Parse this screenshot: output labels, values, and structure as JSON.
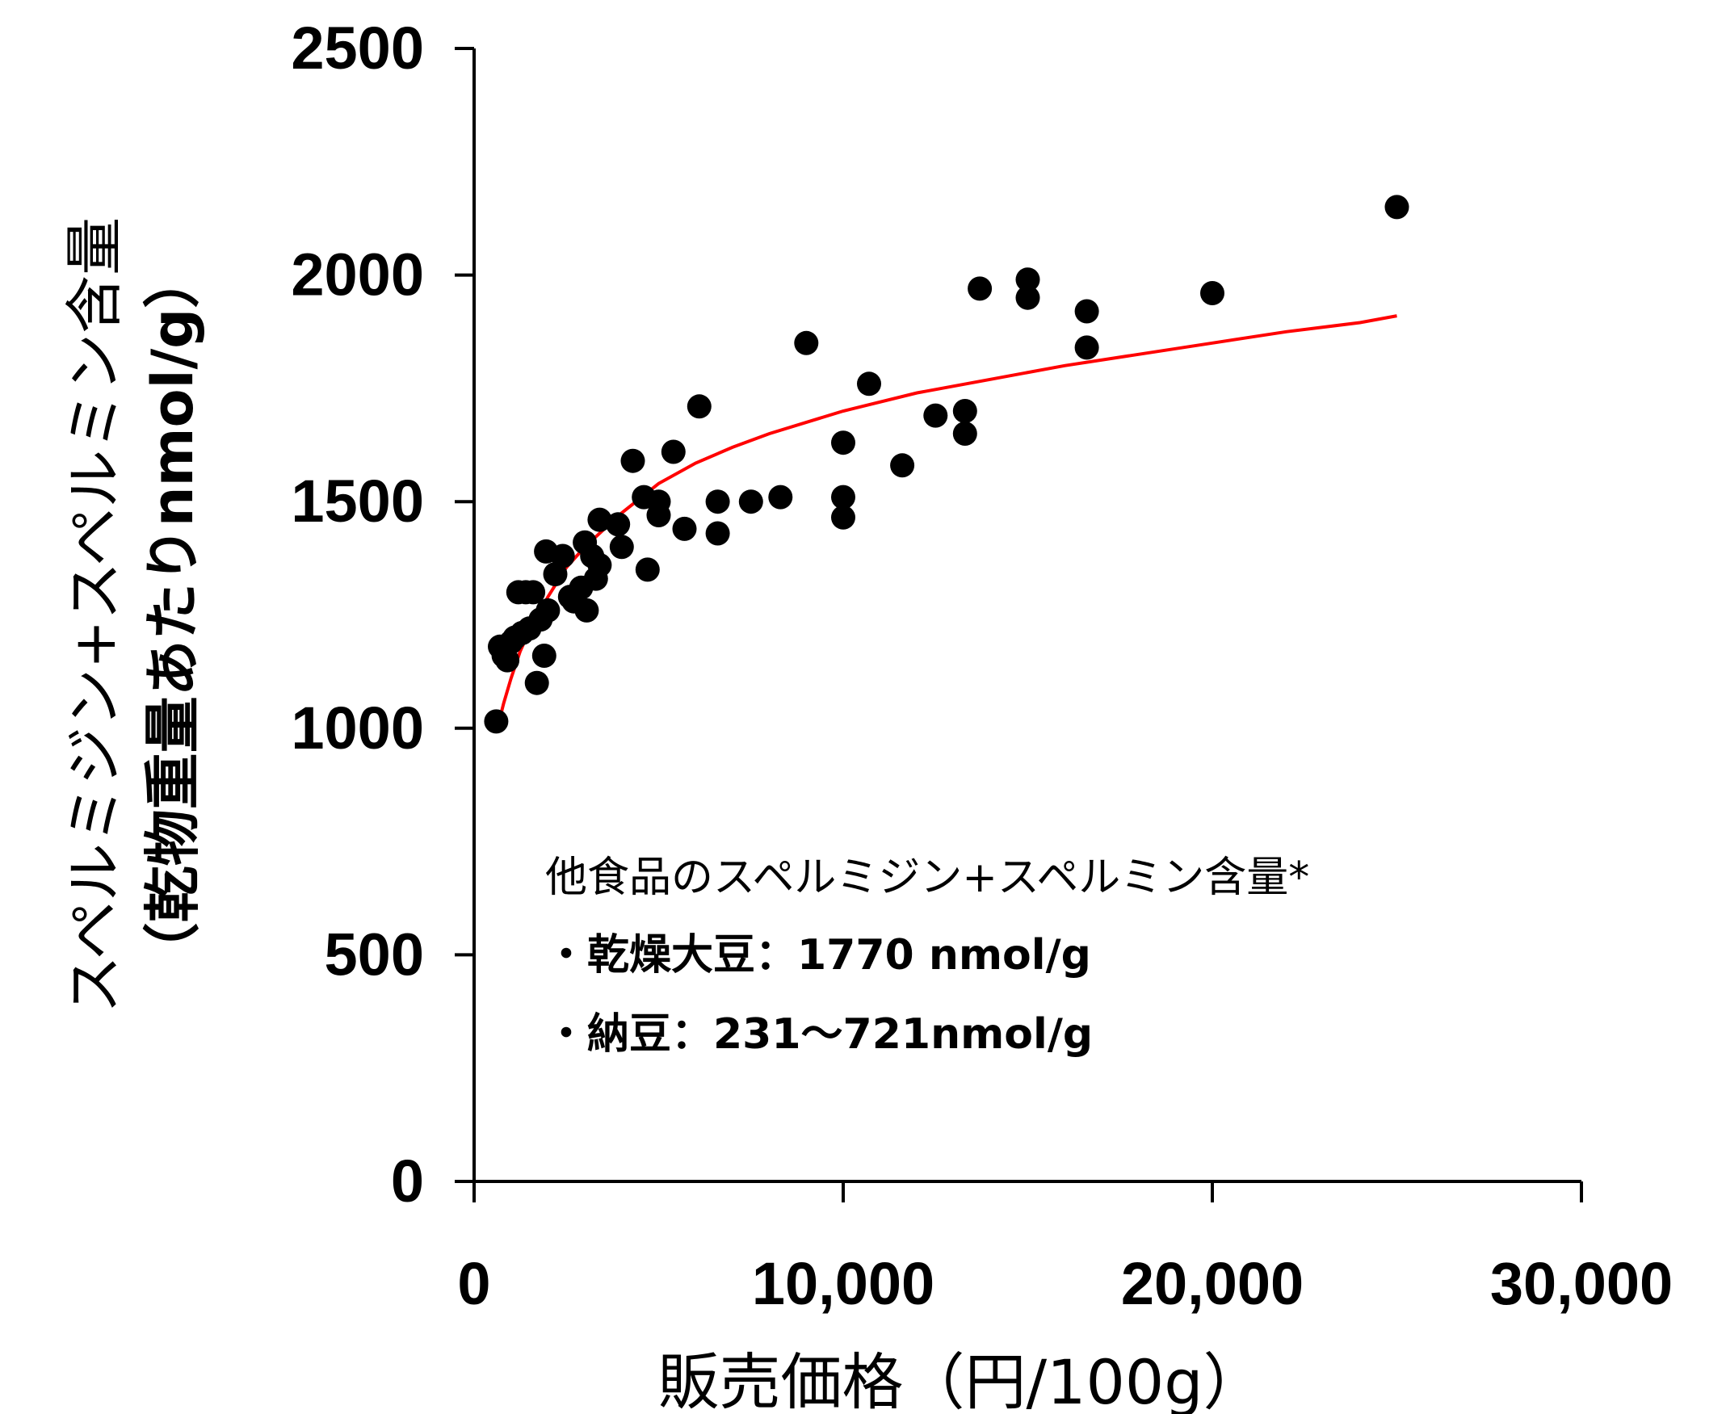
{
  "chart_data": {
    "type": "scatter",
    "title": "",
    "xlabel": "販売価格（円/100g）",
    "ylabel_line1": "スペルミジン+スペルミン含量",
    "ylabel_line2": "（乾物重量あたりnmol/g）",
    "xlim": [
      0,
      30000
    ],
    "ylim": [
      0,
      2500
    ],
    "x_ticks": [
      0,
      10000,
      20000,
      30000
    ],
    "x_tick_labels": [
      "0",
      "10,000",
      "20,000",
      "30,000"
    ],
    "y_ticks": [
      0,
      500,
      1000,
      1500,
      2000,
      2500
    ],
    "y_tick_labels": [
      "0",
      "500",
      "1000",
      "1500",
      "2000",
      "2500"
    ],
    "grid": false,
    "colors": {
      "points": "#000000",
      "fit": "#ff0000",
      "axis": "#000000"
    },
    "series": [
      {
        "type": "scatter",
        "points": [
          [
            600,
            1015
          ],
          [
            700,
            1180
          ],
          [
            800,
            1160
          ],
          [
            900,
            1150
          ],
          [
            1000,
            1190
          ],
          [
            1100,
            1200
          ],
          [
            1200,
            1300
          ],
          [
            1300,
            1210
          ],
          [
            1400,
            1300
          ],
          [
            1500,
            1220
          ],
          [
            1600,
            1300
          ],
          [
            1700,
            1100
          ],
          [
            1800,
            1240
          ],
          [
            1900,
            1160
          ],
          [
            1950,
            1390
          ],
          [
            2000,
            1260
          ],
          [
            2200,
            1340
          ],
          [
            2400,
            1380
          ],
          [
            2600,
            1290
          ],
          [
            2700,
            1280
          ],
          [
            2900,
            1310
          ],
          [
            3000,
            1410
          ],
          [
            3050,
            1260
          ],
          [
            3200,
            1380
          ],
          [
            3300,
            1330
          ],
          [
            3400,
            1460
          ],
          [
            3400,
            1360
          ],
          [
            3900,
            1450
          ],
          [
            4000,
            1400
          ],
          [
            4300,
            1590
          ],
          [
            4700,
            1350
          ],
          [
            4600,
            1510
          ],
          [
            5000,
            1470
          ],
          [
            5000,
            1500
          ],
          [
            5400,
            1610
          ],
          [
            5700,
            1440
          ],
          [
            6100,
            1710
          ],
          [
            6600,
            1500
          ],
          [
            6600,
            1430
          ],
          [
            7500,
            1500
          ],
          [
            8300,
            1510
          ],
          [
            9000,
            1850
          ],
          [
            10000,
            1630
          ],
          [
            10000,
            1510
          ],
          [
            10000,
            1465
          ],
          [
            10700,
            1760
          ],
          [
            11600,
            1580
          ],
          [
            12500,
            1690
          ],
          [
            13300,
            1700
          ],
          [
            13300,
            1650
          ],
          [
            13700,
            1970
          ],
          [
            15000,
            1990
          ],
          [
            15000,
            1950
          ],
          [
            16600,
            1920
          ],
          [
            16600,
            1840
          ],
          [
            20000,
            1960
          ],
          [
            25000,
            2150
          ]
        ]
      },
      {
        "type": "line",
        "x": [
          600,
          800,
          1000,
          1250,
          1500,
          2000,
          2500,
          3000,
          4000,
          5000,
          6000,
          7000,
          8000,
          10000,
          12000,
          14000,
          16000,
          18000,
          20000,
          22000,
          24000,
          25000
        ],
        "y": [
          990,
          1055,
          1110,
          1170,
          1215,
          1290,
          1355,
          1400,
          1475,
          1540,
          1585,
          1620,
          1650,
          1700,
          1740,
          1770,
          1800,
          1825,
          1850,
          1875,
          1895,
          1910
        ]
      }
    ],
    "annotation": {
      "heading": "他食品のスペルミジン+スペルミン含量*",
      "line1": "・乾燥大豆：1770 nmol/g",
      "line2": "・納豆：231～721nmol/g"
    }
  }
}
